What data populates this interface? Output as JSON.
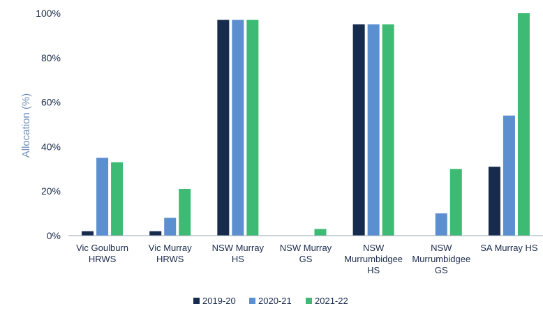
{
  "chart_data": {
    "type": "bar",
    "title": "",
    "xlabel": "",
    "ylabel": "Allocation (%)",
    "ylim": [
      0,
      100
    ],
    "yticks": [
      0,
      20,
      40,
      60,
      80,
      100
    ],
    "ytick_labels": [
      "0%",
      "20%",
      "40%",
      "60%",
      "80%",
      "100%"
    ],
    "grid": false,
    "legend_position": "bottom",
    "categories": [
      [
        "Vic Goulburn",
        "HRWS"
      ],
      [
        "Vic Murray",
        "HRWS"
      ],
      [
        "NSW Murray",
        "HS"
      ],
      [
        "NSW Murray",
        "GS"
      ],
      [
        "NSW",
        "Murrumbidgee",
        "HS"
      ],
      [
        "NSW",
        "Murrumbidgee",
        "GS"
      ],
      [
        "SA Murray HS"
      ]
    ],
    "series": [
      {
        "name": "2019-20",
        "color": "#172b4d",
        "values": [
          2,
          2,
          97,
          0,
          95,
          0,
          31
        ]
      },
      {
        "name": "2020-21",
        "color": "#5b8fcf",
        "values": [
          35,
          8,
          97,
          0,
          95,
          10,
          54
        ]
      },
      {
        "name": "2021-22",
        "color": "#3dbb74",
        "values": [
          33,
          21,
          97,
          3,
          95,
          30,
          100
        ]
      }
    ]
  }
}
